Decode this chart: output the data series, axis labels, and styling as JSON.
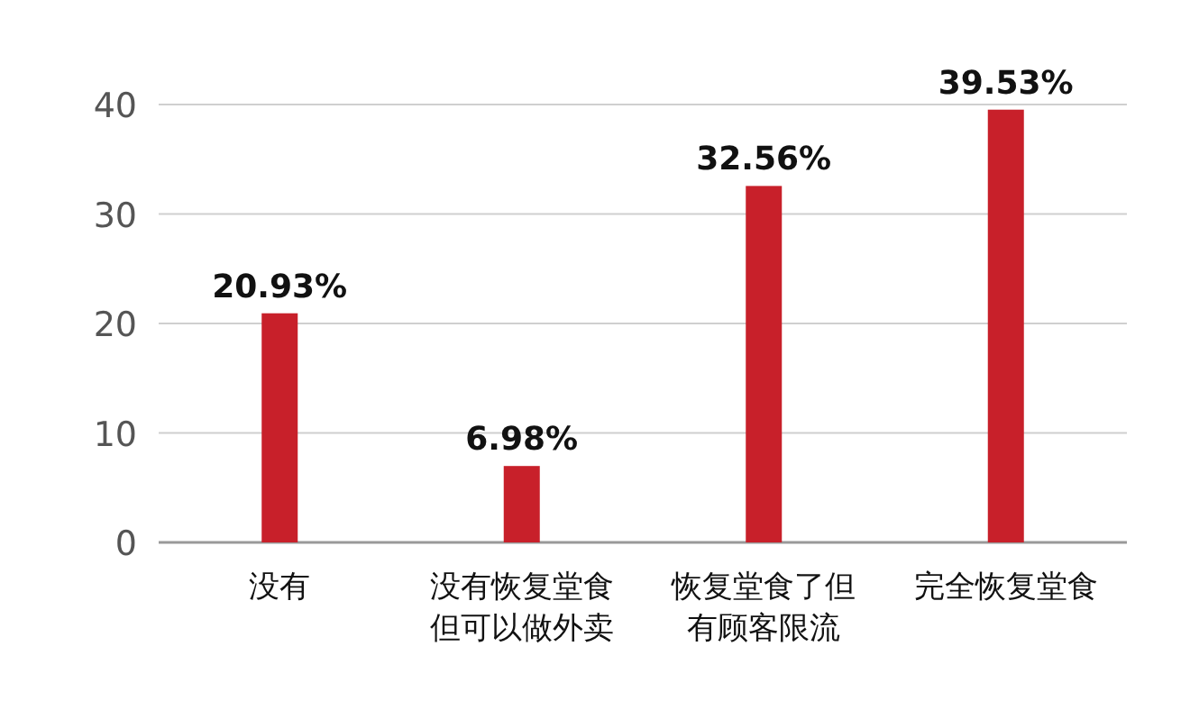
{
  "chart_data": {
    "type": "bar",
    "categories": [
      "没有",
      "没有恢复堂食但可以做外卖",
      "恢复堂食了但有顾客限流",
      "完全恢复堂食"
    ],
    "values": [
      20.93,
      6.98,
      32.56,
      39.53
    ],
    "value_labels": [
      "20.93%",
      "6.98%",
      "32.56%",
      "39.53%"
    ],
    "color": "#c8202a",
    "ylim": [
      0,
      40
    ],
    "yticks": [
      0,
      10,
      20,
      30,
      40
    ],
    "grid": "y"
  }
}
